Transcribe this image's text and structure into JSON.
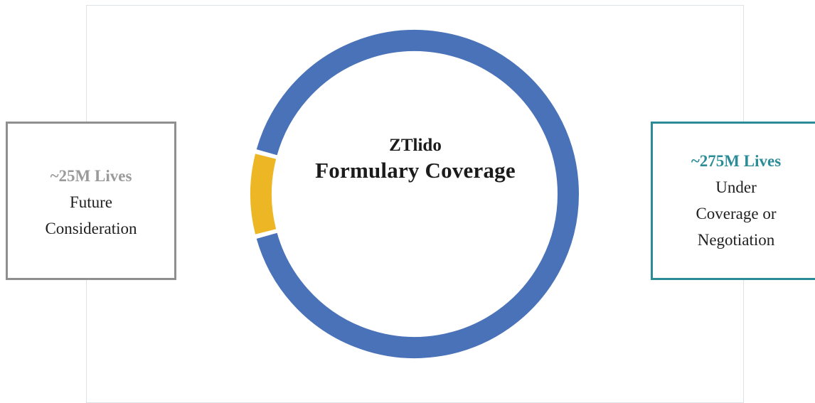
{
  "chart_data": {
    "type": "pie",
    "title": "ZTlido",
    "subtitle": "Formulary Coverage",
    "series": [
      {
        "name": "~275M Lives",
        "value": 275,
        "color": "#4a72b8"
      },
      {
        "name": "~25M Lives",
        "value": 25,
        "color": "#ecb624"
      }
    ]
  },
  "left_callout": {
    "title": "~25M Lives",
    "line1": "Future",
    "line2": "Consideration"
  },
  "right_callout": {
    "title": "~275M Lives",
    "line1": "Under",
    "line2": "Coverage or",
    "line3": "Negotiation"
  },
  "colors": {
    "coverage": "#4a72b8",
    "future": "#ecb624",
    "accent_teal": "#2b8c98",
    "accent_gray": "#8f8f8f"
  }
}
